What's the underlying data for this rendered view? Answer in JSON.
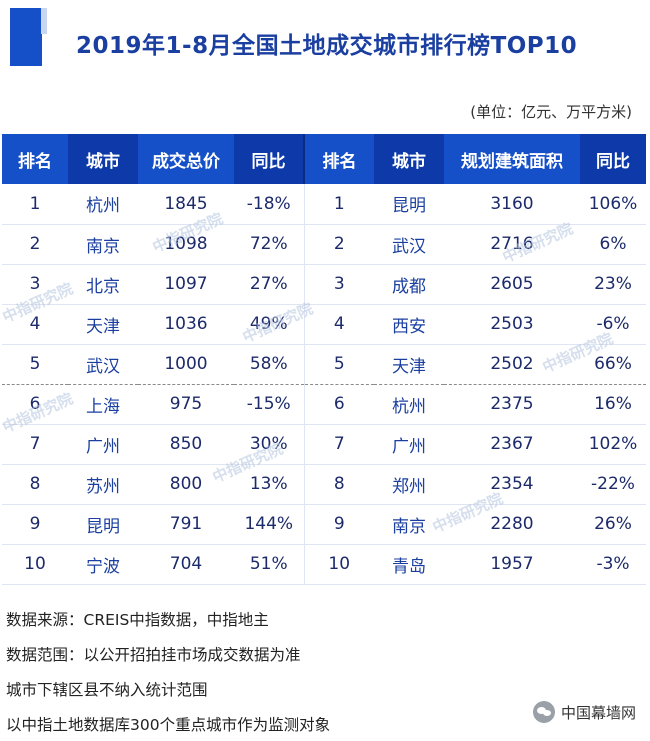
{
  "title": "2019年1-8月全国土地成交城市排行榜TOP10",
  "unit_note": "(单位：亿元、万平方米)",
  "table": {
    "headers": [
      "排名",
      "城市",
      "成交总价",
      "同比",
      "排名",
      "城市",
      "规划建筑面积",
      "同比"
    ],
    "rows": [
      [
        "1",
        "杭州",
        "1845",
        "-18%",
        "1",
        "昆明",
        "3160",
        "106%"
      ],
      [
        "2",
        "南京",
        "1098",
        "72%",
        "2",
        "武汉",
        "2716",
        "6%"
      ],
      [
        "3",
        "北京",
        "1097",
        "27%",
        "3",
        "成都",
        "2605",
        "23%"
      ],
      [
        "4",
        "天津",
        "1036",
        "49%",
        "4",
        "西安",
        "2503",
        "-6%"
      ],
      [
        "5",
        "武汉",
        "1000",
        "58%",
        "5",
        "天津",
        "2502",
        "66%"
      ],
      [
        "6",
        "上海",
        "975",
        "-15%",
        "6",
        "杭州",
        "2375",
        "16%"
      ],
      [
        "7",
        "广州",
        "850",
        "30%",
        "7",
        "广州",
        "2367",
        "102%"
      ],
      [
        "8",
        "苏州",
        "800",
        "13%",
        "8",
        "郑州",
        "2354",
        "-22%"
      ],
      [
        "9",
        "昆明",
        "791",
        "144%",
        "9",
        "南京",
        "2280",
        "26%"
      ],
      [
        "10",
        "宁波",
        "704",
        "51%",
        "10",
        "青岛",
        "1957",
        "-3%"
      ]
    ]
  },
  "watermark": "中指研究院",
  "notes": [
    "数据来源：CREIS中指数据，中指地主",
    "数据范围：以公开招拍挂市场成交数据为准",
    "城市下辖区县不纳入统计范围",
    "以中指土地数据库300个重点城市作为监测对象"
  ],
  "brand": "中国幕墙网",
  "colors": {
    "header_blue": "#1650c8",
    "title_blue": "#1a3fa0"
  }
}
